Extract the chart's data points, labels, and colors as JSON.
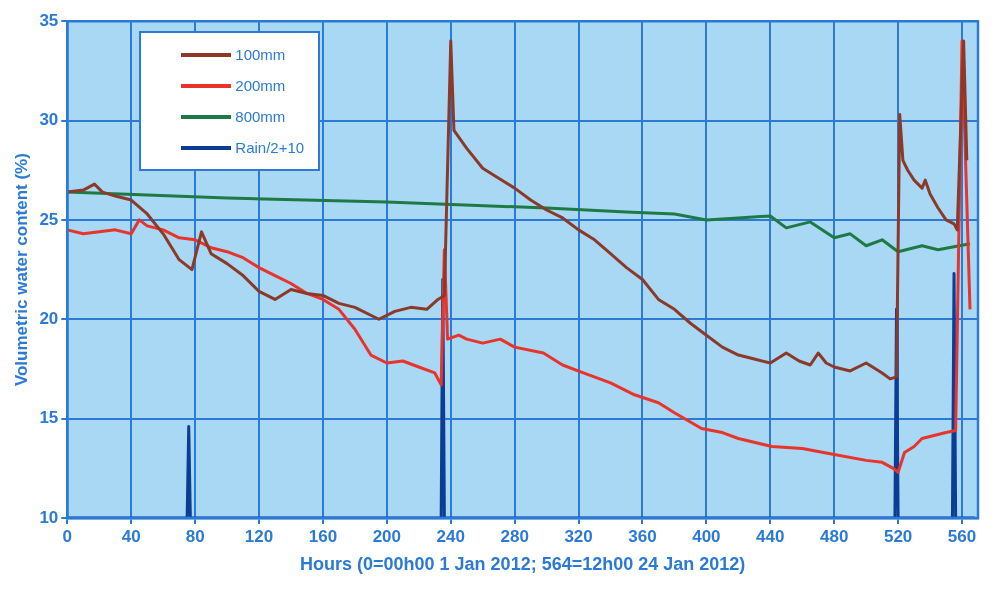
{
  "chart_data": {
    "type": "line",
    "xlabel": "Hours (0=00h00 1 Jan 2012; 564=12h00 24 Jan 2012)",
    "ylabel": "Volumetric water content (%)",
    "xlim": [
      0,
      570
    ],
    "ylim": [
      10,
      35
    ],
    "xticks": [
      0,
      40,
      80,
      120,
      160,
      200,
      240,
      280,
      320,
      360,
      400,
      440,
      480,
      520,
      560
    ],
    "yticks": [
      10,
      15,
      20,
      25,
      30,
      35
    ],
    "grid": true,
    "legend": "top left",
    "marker": "none",
    "line_style": "solid",
    "series": [
      {
        "name": "100mm",
        "color": "#8b3a2a",
        "x": [
          0,
          10,
          17,
          22,
          30,
          40,
          50,
          60,
          70,
          78,
          84,
          90,
          100,
          110,
          120,
          130,
          140,
          150,
          160,
          170,
          180,
          195,
          205,
          215,
          225,
          232,
          236,
          240,
          242,
          250,
          260,
          270,
          280,
          290,
          300,
          310,
          320,
          330,
          340,
          350,
          360,
          370,
          380,
          390,
          400,
          410,
          420,
          430,
          440,
          450,
          458,
          465,
          470,
          475,
          480,
          490,
          500,
          510,
          515,
          519,
          521,
          523,
          526,
          530,
          535,
          537,
          540,
          545,
          550,
          555,
          557,
          561,
          563
        ],
        "values": [
          26.4,
          26.5,
          26.8,
          26.4,
          26.2,
          26.0,
          25.3,
          24.3,
          23.0,
          22.5,
          24.4,
          23.3,
          22.8,
          22.2,
          21.4,
          21.0,
          21.5,
          21.3,
          21.2,
          20.8,
          20.6,
          20.0,
          20.4,
          20.6,
          20.5,
          21.0,
          21.2,
          34.0,
          29.5,
          28.6,
          27.6,
          27.1,
          26.6,
          26.0,
          25.5,
          25.1,
          24.5,
          24.0,
          23.3,
          22.6,
          22.0,
          21.0,
          20.5,
          19.8,
          19.2,
          18.6,
          18.2,
          18.0,
          17.8,
          18.3,
          17.9,
          17.7,
          18.3,
          17.8,
          17.6,
          17.4,
          17.8,
          17.3,
          17.0,
          17.1,
          30.3,
          28.0,
          27.5,
          27.0,
          26.6,
          27.0,
          26.3,
          25.6,
          25.0,
          24.8,
          24.5,
          34.0,
          28.0
        ]
      },
      {
        "name": "200mm",
        "color": "#e8342a",
        "x": [
          0,
          10,
          20,
          30,
          40,
          45,
          50,
          60,
          70,
          80,
          90,
          100,
          110,
          120,
          130,
          140,
          150,
          160,
          170,
          180,
          190,
          200,
          210,
          220,
          230,
          234,
          236,
          238,
          245,
          250,
          260,
          271,
          280,
          298,
          310,
          323,
          340,
          355,
          370,
          380,
          397,
          410,
          420,
          441,
          460,
          480,
          500,
          510,
          517,
          520,
          524,
          530,
          535,
          545,
          550,
          556,
          560,
          565
        ],
        "values": [
          24.5,
          24.3,
          24.4,
          24.5,
          24.3,
          25.0,
          24.7,
          24.5,
          24.1,
          24.0,
          23.6,
          23.4,
          23.1,
          22.6,
          22.2,
          21.8,
          21.3,
          21.0,
          20.5,
          19.5,
          18.2,
          17.8,
          17.9,
          17.6,
          17.3,
          16.7,
          23.5,
          19.0,
          19.2,
          19.0,
          18.8,
          19.0,
          18.6,
          18.3,
          17.7,
          17.3,
          16.8,
          16.2,
          15.8,
          15.3,
          14.5,
          14.3,
          14.0,
          13.6,
          13.5,
          13.2,
          12.9,
          12.8,
          12.5,
          12.3,
          13.3,
          13.6,
          14.0,
          14.2,
          14.3,
          14.4,
          34.0,
          20.5
        ]
      },
      {
        "name": "800mm",
        "color": "#1e7a45",
        "x": [
          0,
          100,
          200,
          300,
          350,
          380,
          400,
          420,
          440,
          450,
          465,
          480,
          490,
          500,
          510,
          520,
          535,
          545,
          565
        ],
        "values": [
          26.4,
          26.1,
          25.9,
          25.6,
          25.4,
          25.3,
          25.0,
          25.1,
          25.2,
          24.6,
          24.9,
          24.1,
          24.3,
          23.7,
          24.0,
          23.4,
          23.7,
          23.5,
          23.8
        ]
      },
      {
        "name": "Rain/2+10",
        "color": "#0b3d94",
        "x": [
          0,
          75,
          76,
          77,
          234,
          235,
          236,
          518,
          519,
          520,
          554,
          555,
          556,
          568
        ],
        "values": [
          10,
          10,
          14.6,
          10,
          10,
          22,
          10,
          10,
          20.5,
          10,
          10,
          22.3,
          10,
          10
        ]
      }
    ]
  }
}
